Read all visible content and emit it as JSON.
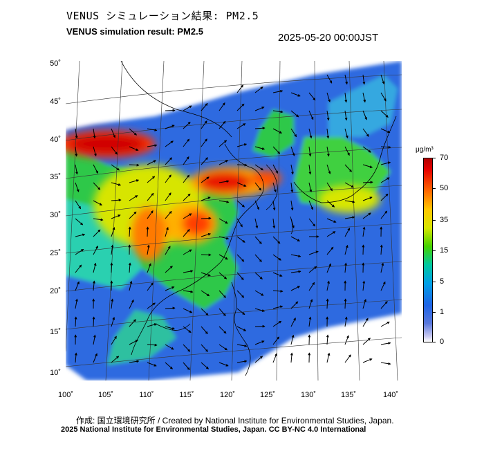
{
  "header": {
    "title_ja": "VENUS シミュレーション結果: PM2.5",
    "title_en": "VENUS simulation result: PM2.5",
    "timestamp": "2025-05-20 00:00JST"
  },
  "map": {
    "lat_labels": [
      "50˚",
      "45˚",
      "40˚",
      "35˚",
      "30˚",
      "25˚",
      "20˚",
      "15˚",
      "10˚"
    ],
    "lon_labels": [
      "100˚",
      "105˚",
      "110˚",
      "115˚",
      "120˚",
      "125˚",
      "130˚",
      "135˚",
      "140˚"
    ],
    "variable": "PM2.5",
    "ocean_color": "#3c6ee6",
    "land_color": "#22c84a"
  },
  "colorbar": {
    "unit": "μg/m³",
    "tick_labels": [
      "70",
      "50",
      "35",
      "15",
      "5",
      "1",
      "0"
    ]
  },
  "footer": {
    "credit": "作成: 国立環境研究所 / Created by National Institute for Environmental Studies, Japan.",
    "copyright": "2025 National Institute for Environmental Studies, Japan. CC BY-NC 4.0 International"
  }
}
